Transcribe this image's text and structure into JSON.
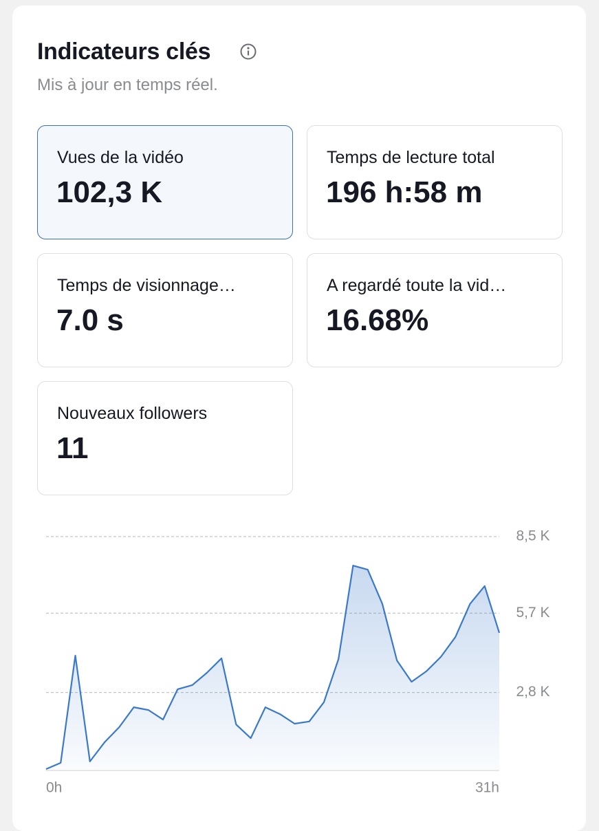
{
  "header": {
    "title": "Indicateurs clés",
    "subtitle": "Mis à jour en temps réel."
  },
  "cards": [
    {
      "label": "Vues de la vidéo",
      "value": "102,3 K",
      "selected": true
    },
    {
      "label": "Temps de lecture total",
      "value": "196 h:58 m",
      "selected": false
    },
    {
      "label": "Temps de visionnage…",
      "value": "7.0 s",
      "selected": false
    },
    {
      "label": "A regardé toute la vid…",
      "value": "16.68%",
      "selected": false
    },
    {
      "label": "Nouveaux followers",
      "value": "11",
      "selected": false
    }
  ],
  "chart_data": {
    "type": "area",
    "color": "#3a78c9",
    "grid": true,
    "x": [
      0,
      1,
      2,
      3,
      4,
      5,
      6,
      7,
      8,
      9,
      10,
      11,
      12,
      13,
      14,
      15,
      16,
      17,
      18,
      19,
      20,
      21,
      22,
      23,
      24,
      25,
      26,
      27,
      28,
      29,
      30,
      31
    ],
    "values": [
      0,
      230,
      4150,
      280,
      980,
      1530,
      2260,
      2160,
      1810,
      2920,
      3070,
      3520,
      4050,
      1630,
      1130,
      2260,
      2010,
      1660,
      1740,
      2440,
      4020,
      7440,
      7290,
      6040,
      3970,
      3190,
      3570,
      4100,
      4830,
      6040,
      6690,
      4980
    ],
    "xlim": [
      0,
      31
    ],
    "xticks": [
      {
        "value": 0,
        "label": "0h"
      },
      {
        "value": 31,
        "label": "31h"
      }
    ],
    "ylim": [
      0,
      8500
    ],
    "yticks": [
      {
        "value": 2800,
        "label": "2,8 K"
      },
      {
        "value": 5700,
        "label": "5,7 K"
      },
      {
        "value": 8500,
        "label": "8,5 K"
      }
    ]
  }
}
